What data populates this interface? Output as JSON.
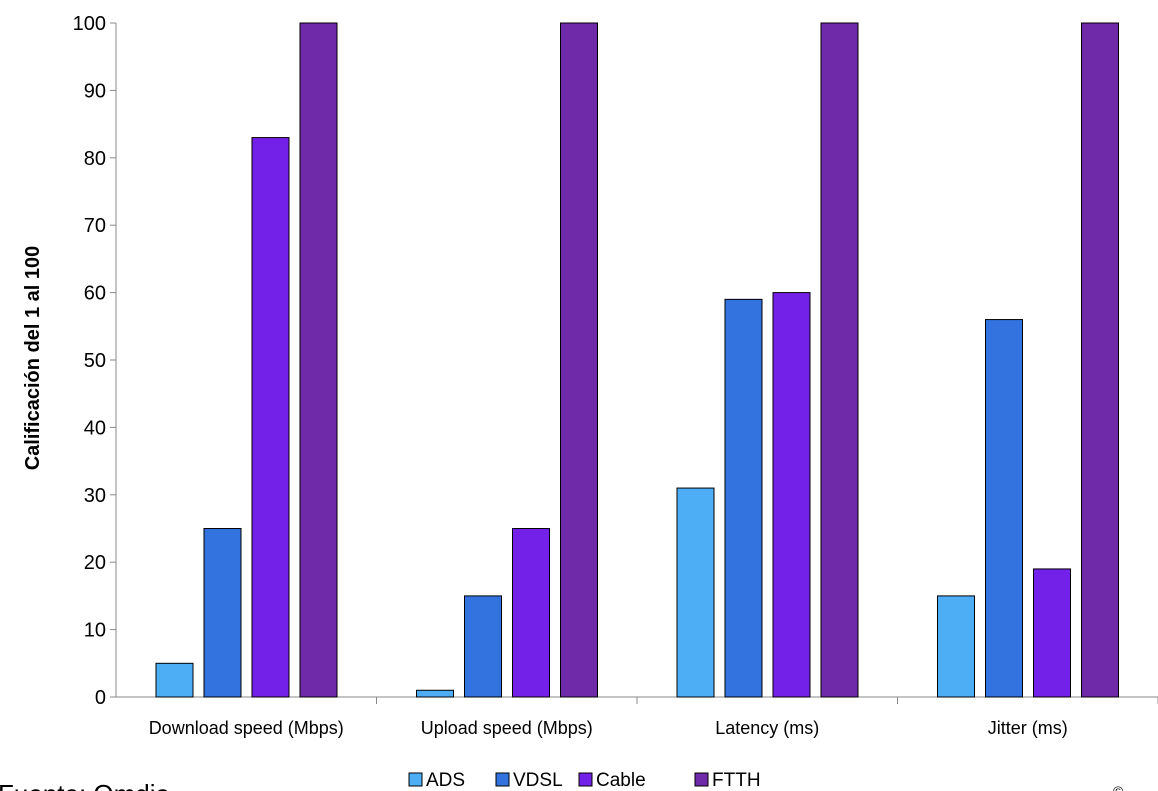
{
  "chart_data": {
    "type": "bar",
    "categories": [
      "Download speed (Mbps)",
      "Upload speed (Mbps)",
      "Latency (ms)",
      "Jitter (ms)"
    ],
    "series": [
      {
        "name": "ADS",
        "color": "#4eaef5",
        "values": [
          5,
          1,
          31,
          15
        ]
      },
      {
        "name": "VDSL",
        "color": "#3273e0",
        "values": [
          25,
          15,
          59,
          56
        ]
      },
      {
        "name": "Cable",
        "color": "#7321e8",
        "values": [
          83,
          25,
          60,
          19
        ]
      },
      {
        "name": "FTTH",
        "color": "#6e2aa8",
        "values": [
          100,
          100,
          100,
          100
        ]
      }
    ],
    "title": "",
    "xlabel": "",
    "ylabel": "Calificación del 1 al 100",
    "ylim": [
      0,
      100
    ],
    "yticks": [
      0,
      10,
      20,
      30,
      40,
      50,
      60,
      70,
      80,
      90,
      100
    ],
    "legend_position": "bottom",
    "grid": false
  },
  "footer": {
    "source": "Fuente: Omdia",
    "copyright": "©"
  }
}
